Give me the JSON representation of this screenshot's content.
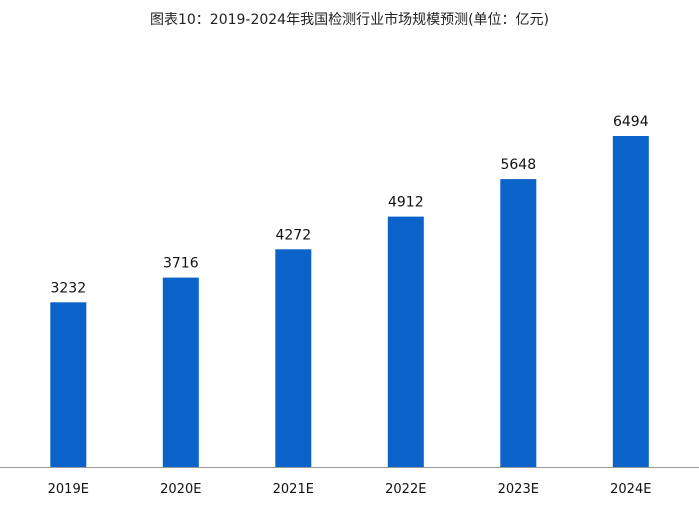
{
  "chart_data": {
    "type": "bar",
    "title": "图表10：2019-2024年我国检测行业市场规模预测(单位：亿元)",
    "categories": [
      "2019E",
      "2020E",
      "2021E",
      "2022E",
      "2023E",
      "2024E"
    ],
    "values": [
      3232,
      3716,
      4272,
      4912,
      5648,
      6494
    ],
    "xlabel": "",
    "ylabel": "",
    "ylim": [
      0,
      7000
    ],
    "grid": false,
    "legend": "none",
    "bar_color": "#0b62c8",
    "axis_color": "#9a9a9a"
  }
}
